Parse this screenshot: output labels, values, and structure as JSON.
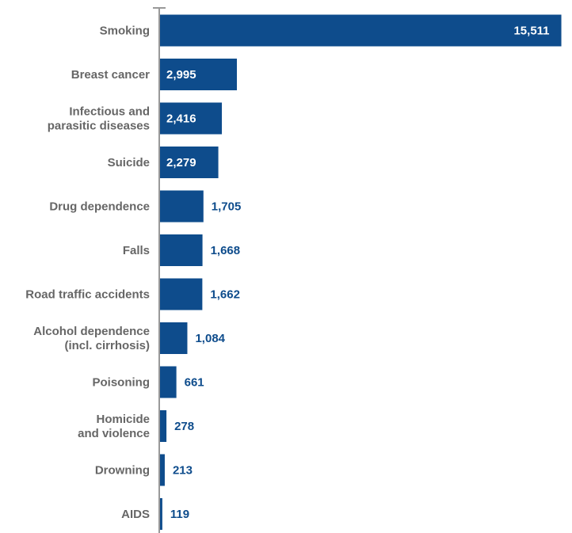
{
  "chart_data": {
    "type": "bar",
    "orientation": "horizontal",
    "categories": [
      "Smoking",
      "Breast cancer",
      "Infectious and parasitic diseases",
      "Suicide",
      "Drug dependence",
      "Falls",
      "Road traffic accidents",
      "Alcohol dependence (incl. cirrhosis)",
      "Poisoning",
      "Homicide and violence",
      "Drowning",
      "AIDS"
    ],
    "category_lines": [
      [
        "Smoking"
      ],
      [
        "Breast cancer"
      ],
      [
        "Infectious and",
        "parasitic diseases"
      ],
      [
        "Suicide"
      ],
      [
        "Drug dependence"
      ],
      [
        "Falls"
      ],
      [
        "Road traffic accidents"
      ],
      [
        "Alcohol dependence",
        "(incl. cirrhosis)"
      ],
      [
        "Poisoning"
      ],
      [
        "Homicide",
        "and violence"
      ],
      [
        "Drowning"
      ],
      [
        "AIDS"
      ]
    ],
    "values": [
      15511,
      2995,
      2416,
      2279,
      1705,
      1668,
      1662,
      1084,
      661,
      278,
      213,
      119
    ],
    "value_labels": [
      "15,511",
      "2,995",
      "2,416",
      "2,279",
      "1,705",
      "1,668",
      "1,662",
      "1,084",
      "661",
      "278",
      "213",
      "119"
    ],
    "xlim": [
      0,
      15800
    ],
    "title": "",
    "xlabel": "",
    "ylabel": "",
    "grid": false,
    "legend": "none",
    "bar_color": "#0e4c8c",
    "label_color": "#666666",
    "inside_value_color": "#ffffff",
    "outside_value_color": "#0e4c8c",
    "axis_color": "#999999"
  }
}
